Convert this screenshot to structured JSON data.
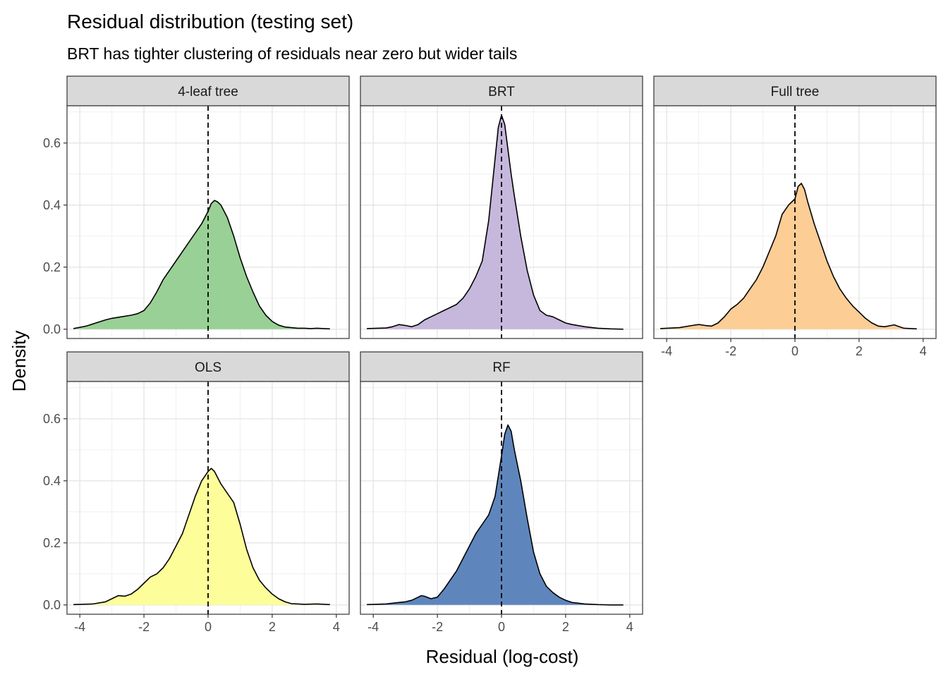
{
  "title": "Residual distribution (testing set)",
  "subtitle": "BRT has tighter clustering of residuals near zero but wider tails",
  "chart_data": {
    "type": "area",
    "chart_kind": "density facets",
    "xlabel": "Residual (log-cost)",
    "ylabel": "Density",
    "xlim": [
      -4.4,
      4.4
    ],
    "ylim": [
      -0.03,
      0.72
    ],
    "x_ticks": [
      -4,
      -2,
      0,
      2,
      4
    ],
    "y_ticks": [
      0.0,
      0.2,
      0.4,
      0.6
    ],
    "y_tick_labels": [
      "0.0",
      "0.2",
      "0.4",
      "0.6"
    ],
    "grid": true,
    "reference_line": {
      "x": 0,
      "style": "dashed"
    },
    "panels": [
      {
        "name": "4-leaf tree",
        "color": "#99d095",
        "x": [
          -4.2,
          -3.8,
          -3.5,
          -3.2,
          -3.0,
          -2.7,
          -2.4,
          -2.2,
          -2.0,
          -1.8,
          -1.6,
          -1.4,
          -1.2,
          -1.0,
          -0.8,
          -0.6,
          -0.4,
          -0.2,
          0.0,
          0.1,
          0.2,
          0.3,
          0.4,
          0.6,
          0.8,
          1.0,
          1.2,
          1.4,
          1.6,
          1.8,
          2.0,
          2.2,
          2.4,
          2.6,
          2.8,
          3.0,
          3.2,
          3.4,
          3.6,
          3.8
        ],
        "y": [
          0.002,
          0.01,
          0.02,
          0.03,
          0.035,
          0.04,
          0.045,
          0.05,
          0.06,
          0.085,
          0.12,
          0.16,
          0.19,
          0.22,
          0.25,
          0.28,
          0.31,
          0.34,
          0.38,
          0.405,
          0.415,
          0.41,
          0.4,
          0.36,
          0.3,
          0.23,
          0.17,
          0.12,
          0.075,
          0.045,
          0.025,
          0.013,
          0.007,
          0.005,
          0.003,
          0.003,
          0.002,
          0.003,
          0.002,
          0.001
        ]
      },
      {
        "name": "BRT",
        "color": "#c6b7dc",
        "x": [
          -4.2,
          -3.6,
          -3.4,
          -3.2,
          -3.0,
          -2.8,
          -2.6,
          -2.4,
          -2.2,
          -2.0,
          -1.8,
          -1.6,
          -1.4,
          -1.2,
          -1.0,
          -0.8,
          -0.6,
          -0.4,
          -0.3,
          -0.2,
          -0.1,
          0.0,
          0.1,
          0.2,
          0.3,
          0.4,
          0.6,
          0.8,
          1.0,
          1.2,
          1.4,
          1.6,
          1.8,
          2.0,
          2.2,
          2.6,
          3.0,
          3.4,
          3.8
        ],
        "y": [
          0.002,
          0.004,
          0.008,
          0.015,
          0.012,
          0.008,
          0.015,
          0.03,
          0.04,
          0.05,
          0.06,
          0.07,
          0.08,
          0.1,
          0.13,
          0.17,
          0.22,
          0.35,
          0.45,
          0.55,
          0.65,
          0.69,
          0.66,
          0.58,
          0.5,
          0.43,
          0.3,
          0.19,
          0.11,
          0.06,
          0.045,
          0.04,
          0.03,
          0.02,
          0.015,
          0.008,
          0.003,
          0.001,
          0.0
        ]
      },
      {
        "name": "Full tree",
        "color": "#fccd95",
        "x": [
          -4.2,
          -3.6,
          -3.2,
          -3.0,
          -2.8,
          -2.6,
          -2.4,
          -2.2,
          -2.0,
          -1.8,
          -1.6,
          -1.4,
          -1.2,
          -1.0,
          -0.8,
          -0.6,
          -0.4,
          -0.2,
          0.0,
          0.1,
          0.2,
          0.3,
          0.4,
          0.6,
          0.8,
          1.0,
          1.2,
          1.4,
          1.6,
          1.8,
          2.0,
          2.2,
          2.4,
          2.6,
          2.8,
          3.0,
          3.1,
          3.2,
          3.4,
          3.8
        ],
        "y": [
          0.002,
          0.005,
          0.012,
          0.015,
          0.012,
          0.01,
          0.02,
          0.04,
          0.065,
          0.08,
          0.1,
          0.13,
          0.16,
          0.2,
          0.25,
          0.3,
          0.37,
          0.4,
          0.42,
          0.46,
          0.47,
          0.45,
          0.41,
          0.34,
          0.28,
          0.22,
          0.17,
          0.13,
          0.1,
          0.075,
          0.055,
          0.035,
          0.02,
          0.01,
          0.008,
          0.012,
          0.014,
          0.01,
          0.003,
          0.001
        ]
      },
      {
        "name": "OLS",
        "color": "#fdfd9a",
        "x": [
          -4.2,
          -3.6,
          -3.2,
          -3.0,
          -2.8,
          -2.6,
          -2.4,
          -2.2,
          -2.0,
          -1.8,
          -1.6,
          -1.4,
          -1.2,
          -1.0,
          -0.8,
          -0.6,
          -0.4,
          -0.2,
          0.0,
          0.1,
          0.2,
          0.4,
          0.6,
          0.8,
          1.0,
          1.2,
          1.4,
          1.6,
          1.8,
          2.0,
          2.2,
          2.4,
          2.6,
          2.8,
          3.0,
          3.4,
          3.8
        ],
        "y": [
          0.001,
          0.003,
          0.01,
          0.02,
          0.03,
          0.028,
          0.035,
          0.05,
          0.07,
          0.09,
          0.1,
          0.12,
          0.15,
          0.19,
          0.23,
          0.29,
          0.35,
          0.4,
          0.43,
          0.44,
          0.43,
          0.39,
          0.36,
          0.33,
          0.26,
          0.18,
          0.12,
          0.08,
          0.055,
          0.035,
          0.02,
          0.01,
          0.004,
          0.003,
          0.002,
          0.003,
          0.001
        ]
      },
      {
        "name": "RF",
        "color": "#5e86bd",
        "x": [
          -4.2,
          -3.6,
          -3.2,
          -3.0,
          -2.8,
          -2.6,
          -2.5,
          -2.4,
          -2.2,
          -2.0,
          -1.8,
          -1.6,
          -1.4,
          -1.2,
          -1.0,
          -0.8,
          -0.6,
          -0.4,
          -0.2,
          0.0,
          0.1,
          0.2,
          0.3,
          0.4,
          0.6,
          0.8,
          1.0,
          1.2,
          1.4,
          1.6,
          1.8,
          2.0,
          2.2,
          2.6,
          3.0,
          3.4,
          3.8
        ],
        "y": [
          0.001,
          0.003,
          0.008,
          0.01,
          0.015,
          0.025,
          0.03,
          0.028,
          0.02,
          0.025,
          0.05,
          0.08,
          0.11,
          0.15,
          0.19,
          0.23,
          0.26,
          0.29,
          0.35,
          0.48,
          0.55,
          0.58,
          0.56,
          0.5,
          0.4,
          0.28,
          0.17,
          0.1,
          0.06,
          0.04,
          0.025,
          0.015,
          0.008,
          0.003,
          0.001,
          0.0,
          0.0
        ]
      }
    ]
  }
}
